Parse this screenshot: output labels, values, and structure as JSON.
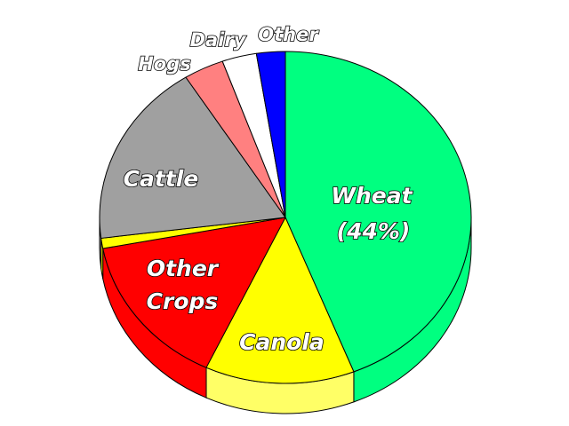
{
  "chart_data": {
    "type": "pie",
    "style": "3d",
    "title": "",
    "slices": [
      {
        "label": "Wheat",
        "value_label": "(44%)",
        "value": 44,
        "color": "#00ff80",
        "side_color": "#00ff80"
      },
      {
        "label": "Canola",
        "value": 13,
        "color": "#ffff00",
        "side_color": "#ffff66"
      },
      {
        "label": "Other Crops",
        "label_lines": [
          "Other",
          "Crops"
        ],
        "value": 15,
        "color": "#ff0000",
        "side_color": "#ff0000"
      },
      {
        "label": "",
        "value": 1,
        "color": "#ffff00",
        "side_color": "#ffff00"
      },
      {
        "label": "Cattle",
        "value": 18,
        "color": "#a0a0a0",
        "side_color": "#a0a0a0"
      },
      {
        "label": "Hogs",
        "value": 3.5,
        "color": "#ff8080",
        "side_color": "#ff8080"
      },
      {
        "label": "Dairy",
        "value": 3,
        "color": "#ffffff",
        "side_color": "#ffffff"
      },
      {
        "label": "Other",
        "value": 2.5,
        "color": "#0000ff",
        "side_color": "#0000ff"
      }
    ]
  }
}
